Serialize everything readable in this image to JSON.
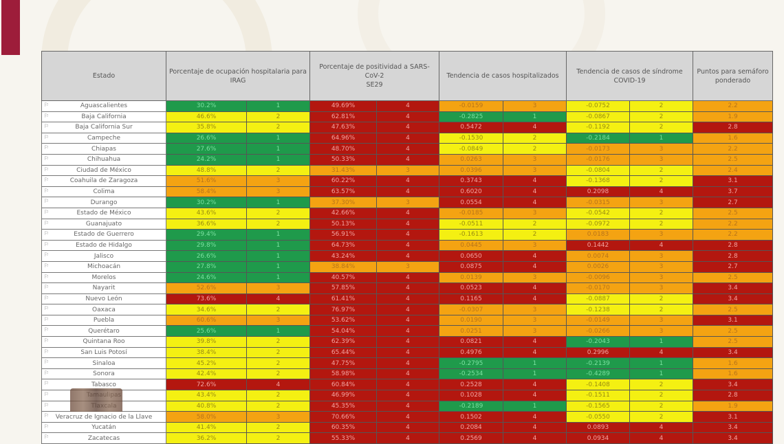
{
  "decor": {
    "brand_color": "#9d1d3a"
  },
  "colors": {
    "level1": "#1f9a4b",
    "level2": "#f4f012",
    "level3": "#f4a312",
    "level4": "#b3170f"
  },
  "headers": {
    "estado": "Estado",
    "ocupacion": "Porcentaje de ocupación hospitalaria para IRAG",
    "positividad_l1": "Porcentaje de positividad a SARS-",
    "positividad_l2": "CoV-2",
    "positividad_l3": "SE29",
    "hospitalizados": "Tendencia de casos hospitalizados",
    "sindrome": "Tendencia de casos de síndrome COVID-19",
    "puntos": "Puntos para semáforo ponderado"
  },
  "rows": [
    {
      "estado": "Aguascalientes",
      "occ": "30.2%",
      "occ_lvl": "1",
      "pos": "49.69%",
      "pos_lvl": "4",
      "hosp": "-0.0159",
      "hosp_lvl": "3",
      "sind": "-0.0752",
      "sind_lvl": "2",
      "pts": "2.2",
      "pts_lvl": "3"
    },
    {
      "estado": "Baja California",
      "occ": "46.6%",
      "occ_lvl": "2",
      "pos": "62.81%",
      "pos_lvl": "4",
      "hosp": "-0.2825",
      "hosp_lvl": "1",
      "sind": "-0.0867",
      "sind_lvl": "2",
      "pts": "1.9",
      "pts_lvl": "3"
    },
    {
      "estado": "Baja California Sur",
      "occ": "35.8%",
      "occ_lvl": "2",
      "pos": "47.63%",
      "pos_lvl": "4",
      "hosp": "0.5472",
      "hosp_lvl": "4",
      "sind": "-0.1192",
      "sind_lvl": "2",
      "pts": "2.8",
      "pts_lvl": "4"
    },
    {
      "estado": "Campeche",
      "occ": "26.6%",
      "occ_lvl": "1",
      "pos": "64.96%",
      "pos_lvl": "4",
      "hosp": "-0.1530",
      "hosp_lvl": "2",
      "sind": "-0.2184",
      "sind_lvl": "1",
      "pts": "1.6",
      "pts_lvl": "3"
    },
    {
      "estado": "Chiapas",
      "occ": "27.6%",
      "occ_lvl": "1",
      "pos": "48.70%",
      "pos_lvl": "4",
      "hosp": "-0.0849",
      "hosp_lvl": "2",
      "sind": "-0.0173",
      "sind_lvl": "3",
      "pts": "2.2",
      "pts_lvl": "3"
    },
    {
      "estado": "Chihuahua",
      "occ": "24.2%",
      "occ_lvl": "1",
      "pos": "50.33%",
      "pos_lvl": "4",
      "hosp": "0.0263",
      "hosp_lvl": "3",
      "sind": "-0.0176",
      "sind_lvl": "3",
      "pts": "2.5",
      "pts_lvl": "3"
    },
    {
      "estado": "Ciudad de México",
      "occ": "48.8%",
      "occ_lvl": "2",
      "pos": "31.43%",
      "pos_lvl": "3",
      "hosp": "0.0396",
      "hosp_lvl": "3",
      "sind": "-0.0804",
      "sind_lvl": "2",
      "pts": "2.4",
      "pts_lvl": "3"
    },
    {
      "estado": "Coahuila de Zaragoza",
      "occ": "51.6%",
      "occ_lvl": "3",
      "pos": "60.22%",
      "pos_lvl": "4",
      "hosp": "0.3743",
      "hosp_lvl": "4",
      "sind": "-0.1368",
      "sind_lvl": "2",
      "pts": "3.1",
      "pts_lvl": "4"
    },
    {
      "estado": "Colima",
      "occ": "58.4%",
      "occ_lvl": "3",
      "pos": "63.57%",
      "pos_lvl": "4",
      "hosp": "0.6020",
      "hosp_lvl": "4",
      "sind": "0.2098",
      "sind_lvl": "4",
      "pts": "3.7",
      "pts_lvl": "4"
    },
    {
      "estado": "Durango",
      "occ": "30.2%",
      "occ_lvl": "1",
      "pos": "37.30%",
      "pos_lvl": "3",
      "hosp": "0.0554",
      "hosp_lvl": "4",
      "sind": "-0.0315",
      "sind_lvl": "3",
      "pts": "2.7",
      "pts_lvl": "4"
    },
    {
      "estado": "Estado de México",
      "occ": "43.6%",
      "occ_lvl": "2",
      "pos": "42.66%",
      "pos_lvl": "4",
      "hosp": "-0.0185",
      "hosp_lvl": "3",
      "sind": "-0.0542",
      "sind_lvl": "2",
      "pts": "2.5",
      "pts_lvl": "3"
    },
    {
      "estado": "Guanajuato",
      "occ": "36.6%",
      "occ_lvl": "2",
      "pos": "50.13%",
      "pos_lvl": "4",
      "hosp": "-0.0511",
      "hosp_lvl": "2",
      "sind": "-0.0972",
      "sind_lvl": "2",
      "pts": "2.2",
      "pts_lvl": "3"
    },
    {
      "estado": "Estado de Guerrero",
      "occ": "29.4%",
      "occ_lvl": "1",
      "pos": "56.91%",
      "pos_lvl": "4",
      "hosp": "-0.1613",
      "hosp_lvl": "2",
      "sind": "0.0183",
      "sind_lvl": "3",
      "pts": "2.2",
      "pts_lvl": "3"
    },
    {
      "estado": "Estado de Hidalgo",
      "occ": "29.8%",
      "occ_lvl": "1",
      "pos": "64.73%",
      "pos_lvl": "4",
      "hosp": "0.0445",
      "hosp_lvl": "3",
      "sind": "0.1442",
      "sind_lvl": "4",
      "pts": "2.8",
      "pts_lvl": "4"
    },
    {
      "estado": "Jalisco",
      "occ": "26.6%",
      "occ_lvl": "1",
      "pos": "43.24%",
      "pos_lvl": "4",
      "hosp": "0.0650",
      "hosp_lvl": "4",
      "sind": "0.0074",
      "sind_lvl": "3",
      "pts": "2.8",
      "pts_lvl": "4"
    },
    {
      "estado": "Michoacán",
      "occ": "27.8%",
      "occ_lvl": "1",
      "pos": "38.84%",
      "pos_lvl": "3",
      "hosp": "0.0875",
      "hosp_lvl": "4",
      "sind": "0.0026",
      "sind_lvl": "3",
      "pts": "2.7",
      "pts_lvl": "4"
    },
    {
      "estado": "Morelos",
      "occ": "24.6%",
      "occ_lvl": "1",
      "pos": "40.57%",
      "pos_lvl": "4",
      "hosp": "0.0139",
      "hosp_lvl": "3",
      "sind": "-0.0096",
      "sind_lvl": "3",
      "pts": "2.5",
      "pts_lvl": "3"
    },
    {
      "estado": "Nayarit",
      "occ": "52.6%",
      "occ_lvl": "3",
      "pos": "57.85%",
      "pos_lvl": "4",
      "hosp": "0.0523",
      "hosp_lvl": "4",
      "sind": "-0.0170",
      "sind_lvl": "3",
      "pts": "3.4",
      "pts_lvl": "4"
    },
    {
      "estado": "Nuevo León",
      "occ": "73.6%",
      "occ_lvl": "4",
      "pos": "61.41%",
      "pos_lvl": "4",
      "hosp": "0.1165",
      "hosp_lvl": "4",
      "sind": "-0.0887",
      "sind_lvl": "2",
      "pts": "3.4",
      "pts_lvl": "4"
    },
    {
      "estado": "Oaxaca",
      "occ": "34.6%",
      "occ_lvl": "2",
      "pos": "76.97%",
      "pos_lvl": "4",
      "hosp": "-0.0307",
      "hosp_lvl": "3",
      "sind": "-0.1238",
      "sind_lvl": "2",
      "pts": "2.5",
      "pts_lvl": "3"
    },
    {
      "estado": "Puebla",
      "occ": "60.6%",
      "occ_lvl": "3",
      "pos": "53.62%",
      "pos_lvl": "4",
      "hosp": "0.0190",
      "hosp_lvl": "3",
      "sind": "-0.0149",
      "sind_lvl": "3",
      "pts": "3.1",
      "pts_lvl": "4"
    },
    {
      "estado": "Querétaro",
      "occ": "25.6%",
      "occ_lvl": "1",
      "pos": "54.04%",
      "pos_lvl": "4",
      "hosp": "0.0251",
      "hosp_lvl": "3",
      "sind": "-0.0266",
      "sind_lvl": "3",
      "pts": "2.5",
      "pts_lvl": "3"
    },
    {
      "estado": "Quintana Roo",
      "occ": "39.8%",
      "occ_lvl": "2",
      "pos": "62.39%",
      "pos_lvl": "4",
      "hosp": "0.0821",
      "hosp_lvl": "4",
      "sind": "-0.2043",
      "sind_lvl": "1",
      "pts": "2.5",
      "pts_lvl": "3"
    },
    {
      "estado": "San Luis Potosí",
      "occ": "38.4%",
      "occ_lvl": "2",
      "pos": "65.44%",
      "pos_lvl": "4",
      "hosp": "0.4976",
      "hosp_lvl": "4",
      "sind": "0.2996",
      "sind_lvl": "4",
      "pts": "3.4",
      "pts_lvl": "4"
    },
    {
      "estado": "Sinaloa",
      "occ": "45.2%",
      "occ_lvl": "2",
      "pos": "47.75%",
      "pos_lvl": "4",
      "hosp": "-0.2795",
      "hosp_lvl": "1",
      "sind": "-0.2139",
      "sind_lvl": "1",
      "pts": "1.6",
      "pts_lvl": "3"
    },
    {
      "estado": "Sonora",
      "occ": "42.4%",
      "occ_lvl": "2",
      "pos": "58.98%",
      "pos_lvl": "4",
      "hosp": "-0.2534",
      "hosp_lvl": "1",
      "sind": "-0.4289",
      "sind_lvl": "1",
      "pts": "1.6",
      "pts_lvl": "3"
    },
    {
      "estado": "Tabasco",
      "occ": "72.6%",
      "occ_lvl": "4",
      "pos": "60.84%",
      "pos_lvl": "4",
      "hosp": "0.2528",
      "hosp_lvl": "4",
      "sind": "-0.1408",
      "sind_lvl": "2",
      "pts": "3.4",
      "pts_lvl": "4"
    },
    {
      "estado": "Tamaulipas",
      "occ": "43.4%",
      "occ_lvl": "2",
      "pos": "46.99%",
      "pos_lvl": "4",
      "hosp": "0.1028",
      "hosp_lvl": "4",
      "sind": "-0.1511",
      "sind_lvl": "2",
      "pts": "2.8",
      "pts_lvl": "4"
    },
    {
      "estado": "Tlaxcala",
      "occ": "40.8%",
      "occ_lvl": "2",
      "pos": "45.35%",
      "pos_lvl": "4",
      "hosp": "-0.2189",
      "hosp_lvl": "1",
      "sind": "-0.1565",
      "sind_lvl": "2",
      "pts": "1.9",
      "pts_lvl": "3"
    },
    {
      "estado": "Veracruz de Ignacio de la Llave",
      "occ": "58.0%",
      "occ_lvl": "3",
      "pos": "70.66%",
      "pos_lvl": "4",
      "hosp": "0.1502",
      "hosp_lvl": "4",
      "sind": "-0.0550",
      "sind_lvl": "2",
      "pts": "3.1",
      "pts_lvl": "4"
    },
    {
      "estado": "Yucatán",
      "occ": "41.4%",
      "occ_lvl": "2",
      "pos": "60.35%",
      "pos_lvl": "4",
      "hosp": "0.2084",
      "hosp_lvl": "4",
      "sind": "0.0893",
      "sind_lvl": "4",
      "pts": "3.4",
      "pts_lvl": "4"
    },
    {
      "estado": "Zacatecas",
      "occ": "36.2%",
      "occ_lvl": "2",
      "pos": "55.33%",
      "pos_lvl": "4",
      "hosp": "0.2569",
      "hosp_lvl": "4",
      "sind": "0.0934",
      "sind_lvl": "4",
      "pts": "3.4",
      "pts_lvl": "4"
    }
  ]
}
